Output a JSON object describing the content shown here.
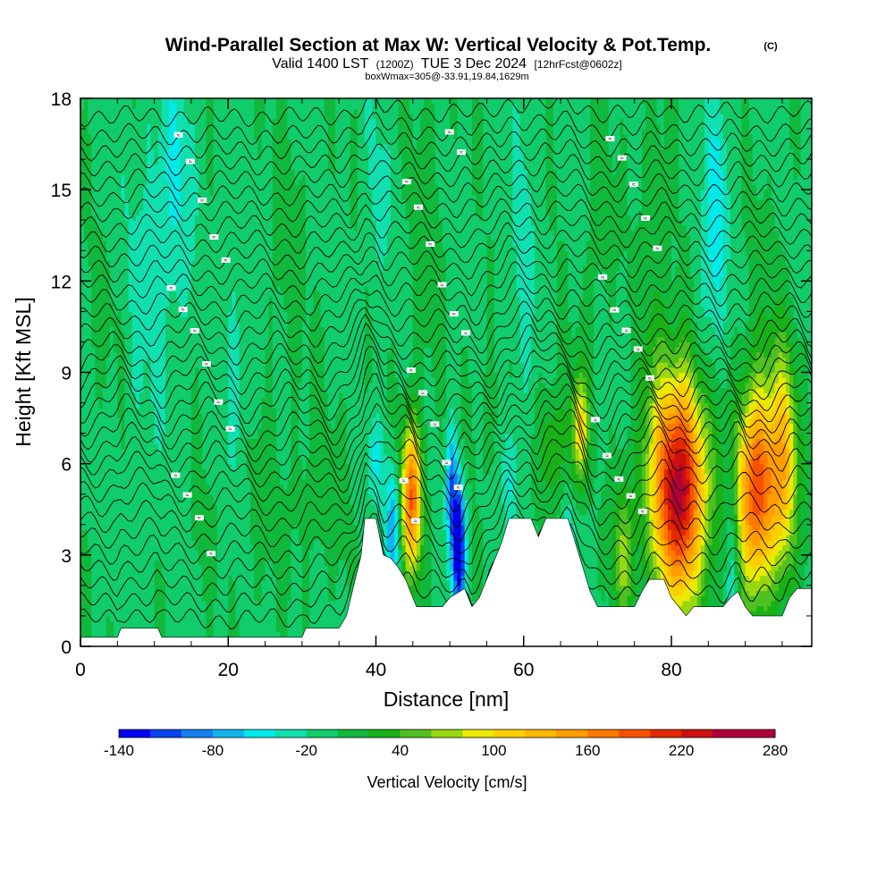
{
  "title": "Wind-Parallel Section at Max W: Vertical Velocity & Pot.Temp.",
  "copyright": "(C)",
  "subtitle_valid": "Valid 1400 LST",
  "subtitle_utc": "(1200Z)",
  "subtitle_date": "TUE 3 Dec 2024",
  "subtitle_fcst": "[12hrFcst@0602z]",
  "subtitle_box": "boxWmax=305@-33.91,19.84,1629m",
  "colors": {
    "background": "#ffffff",
    "frame": "#000000",
    "contour": "#000000",
    "terrain": "#ffffff"
  },
  "chart_data": {
    "type": "heatmap",
    "xlabel": "Distance [nm]",
    "ylabel": "Height [Kft MSL]",
    "xlim": [
      0,
      99
    ],
    "ylim": [
      0,
      18
    ],
    "x_ticks": [
      0,
      20,
      40,
      60,
      80
    ],
    "x_tick_labels": [
      "0",
      "20",
      "40",
      "60",
      "80"
    ],
    "y_ticks": [
      0,
      3,
      6,
      9,
      12,
      15,
      18
    ],
    "y_tick_labels": [
      "0",
      "3",
      "6",
      "9",
      "12",
      "15",
      "18"
    ],
    "colorbar": {
      "label": "Vertical Velocity [cm/s]",
      "min": -140,
      "max": 280,
      "step": 20,
      "tick_values": [
        -140,
        -80,
        -20,
        40,
        100,
        160,
        220,
        280
      ],
      "tick_labels": [
        "-140",
        "-80",
        "-20",
        "40",
        "100",
        "160",
        "220",
        "280"
      ],
      "colors": [
        "#0000ee",
        "#0a42f0",
        "#1280f0",
        "#12b4f0",
        "#00eaea",
        "#10e0b0",
        "#10cc6a",
        "#10b83c",
        "#18b218",
        "#50c020",
        "#98d810",
        "#eaea00",
        "#fcd000",
        "#ffb800",
        "#ff9c00",
        "#ff7800",
        "#f85000",
        "#e42800",
        "#cc1010",
        "#b00038",
        "#b00038"
      ]
    },
    "background_w": -5,
    "terrain_profile": [
      [
        0,
        0.3
      ],
      [
        5,
        0.3
      ],
      [
        5.5,
        0.6
      ],
      [
        10.5,
        0.6
      ],
      [
        11,
        0.3
      ],
      [
        30,
        0.3
      ],
      [
        30.5,
        0.6
      ],
      [
        35,
        0.6
      ],
      [
        36,
        1.0
      ],
      [
        37,
        2.0
      ],
      [
        38,
        3.0
      ],
      [
        38.5,
        4.2
      ],
      [
        40,
        4.2
      ],
      [
        41,
        3.0
      ],
      [
        42,
        2.9
      ],
      [
        43,
        2.6
      ],
      [
        44,
        2.2
      ],
      [
        45.5,
        1.3
      ],
      [
        49,
        1.3
      ],
      [
        50,
        1.6
      ],
      [
        52,
        1.9
      ],
      [
        53,
        1.3
      ],
      [
        54,
        1.6
      ],
      [
        55,
        2.2
      ],
      [
        56,
        2.8
      ],
      [
        57,
        3.4
      ],
      [
        58,
        4.2
      ],
      [
        61,
        4.2
      ],
      [
        62,
        3.6
      ],
      [
        63,
        4.2
      ],
      [
        66,
        4.2
      ],
      [
        67,
        3.4
      ],
      [
        68,
        2.6
      ],
      [
        69,
        1.8
      ],
      [
        70,
        1.3
      ],
      [
        75,
        1.3
      ],
      [
        76,
        1.8
      ],
      [
        77,
        2.2
      ],
      [
        79,
        2.2
      ],
      [
        80,
        1.6
      ],
      [
        82,
        1.0
      ],
      [
        83,
        1.3
      ],
      [
        87,
        1.3
      ],
      [
        88,
        1.6
      ],
      [
        89,
        1.8
      ],
      [
        90,
        1.3
      ],
      [
        91,
        1.0
      ],
      [
        95,
        1.0
      ],
      [
        96,
        1.6
      ],
      [
        97,
        1.9
      ],
      [
        99,
        1.9
      ]
    ],
    "w_features": [
      {
        "x": 81,
        "y": 5.2,
        "sx": 2.6,
        "sy": 2.6,
        "w": 255
      },
      {
        "x": 91.5,
        "y": 5.2,
        "sx": 1.9,
        "sy": 2.3,
        "w": 200
      },
      {
        "x": 95.2,
        "y": 6.0,
        "sx": 1.4,
        "sy": 2.6,
        "w": 115
      },
      {
        "x": 44.8,
        "y": 4.9,
        "sx": 1.0,
        "sy": 1.7,
        "w": 185
      },
      {
        "x": 67.6,
        "y": 7.2,
        "sx": 0.8,
        "sy": 1.3,
        "w": 110
      },
      {
        "x": 73.5,
        "y": 3.0,
        "sx": 1.0,
        "sy": 1.8,
        "w": 65
      },
      {
        "x": 64,
        "y": 6.6,
        "sx": 1.4,
        "sy": 1.4,
        "w": 45
      },
      {
        "x": 77.5,
        "y": 12.0,
        "sx": 1.4,
        "sy": 4.0,
        "w": 22
      },
      {
        "x": 51.2,
        "y": 3.3,
        "sx": 0.6,
        "sy": 1.5,
        "w": -165
      },
      {
        "x": 50.2,
        "y": 5.2,
        "sx": 0.5,
        "sy": 1.4,
        "w": -85
      },
      {
        "x": 42.3,
        "y": 4.0,
        "sx": 0.8,
        "sy": 1.5,
        "w": -75
      },
      {
        "x": 40,
        "y": 6.2,
        "sx": 0.7,
        "sy": 1.0,
        "w": -40
      },
      {
        "x": 66,
        "y": 2.8,
        "sx": 0.6,
        "sy": 1.3,
        "w": -50
      },
      {
        "x": 58.2,
        "y": 5.6,
        "sx": 0.7,
        "sy": 1.3,
        "w": -35
      },
      {
        "x": 88.2,
        "y": 3.4,
        "sx": 0.6,
        "sy": 2.4,
        "w": -45
      },
      {
        "x": 86.2,
        "y": 14.6,
        "sx": 1.0,
        "sy": 3.0,
        "w": -45
      },
      {
        "x": 84.5,
        "y": 11.0,
        "sx": 1.0,
        "sy": 2.5,
        "w": -25
      },
      {
        "x": 13,
        "y": 15.5,
        "sx": 1.8,
        "sy": 3.0,
        "w": -30
      },
      {
        "x": 9,
        "y": 12.0,
        "sx": 3.0,
        "sy": 4.0,
        "w": -20
      },
      {
        "x": 21,
        "y": 10.0,
        "sx": 1.5,
        "sy": 3.5,
        "w": -18
      },
      {
        "x": 60,
        "y": 13.0,
        "sx": 1.2,
        "sy": 4.5,
        "w": -22
      },
      {
        "x": 40.5,
        "y": 15.0,
        "sx": 1.2,
        "sy": 3.0,
        "w": -18
      },
      {
        "x": 24,
        "y": 4.5,
        "sx": 1.6,
        "sy": 2.2,
        "w": 12
      },
      {
        "x": 32,
        "y": 5.0,
        "sx": 3.0,
        "sy": 2.0,
        "w": 14
      },
      {
        "x": 28,
        "y": 13.0,
        "sx": 2.0,
        "sy": 3.0,
        "w": 12
      },
      {
        "x": 47,
        "y": 13.5,
        "sx": 1.5,
        "sy": 4.0,
        "w": 15
      },
      {
        "x": 4,
        "y": 11.0,
        "sx": 2.0,
        "sy": 2.0,
        "w": 12
      },
      {
        "x": 16,
        "y": 3.5,
        "sx": 2.0,
        "sy": 1.5,
        "w": 8
      },
      {
        "x": 55,
        "y": 7.5,
        "sx": 2.0,
        "sy": 1.5,
        "w": 12
      },
      {
        "x": 70,
        "y": 14.0,
        "sx": 1.5,
        "sy": 3.0,
        "w": 14
      },
      {
        "x": 93,
        "y": 11.5,
        "sx": 2.0,
        "sy": 3.0,
        "w": 10
      }
    ],
    "theta_contours": {
      "count": 34,
      "base_heights": [
        0.9,
        1.45,
        2.0,
        2.55,
        3.1,
        3.65,
        4.2,
        4.75,
        5.25,
        5.75,
        6.2,
        6.65,
        7.1,
        7.55,
        8.0,
        8.45,
        8.9,
        9.35,
        9.8,
        10.3,
        10.8,
        11.3,
        11.8,
        12.3,
        12.8,
        13.3,
        13.8,
        14.3,
        14.8,
        15.3,
        15.8,
        16.3,
        16.8,
        17.4
      ],
      "label_text": "≈"
    }
  }
}
